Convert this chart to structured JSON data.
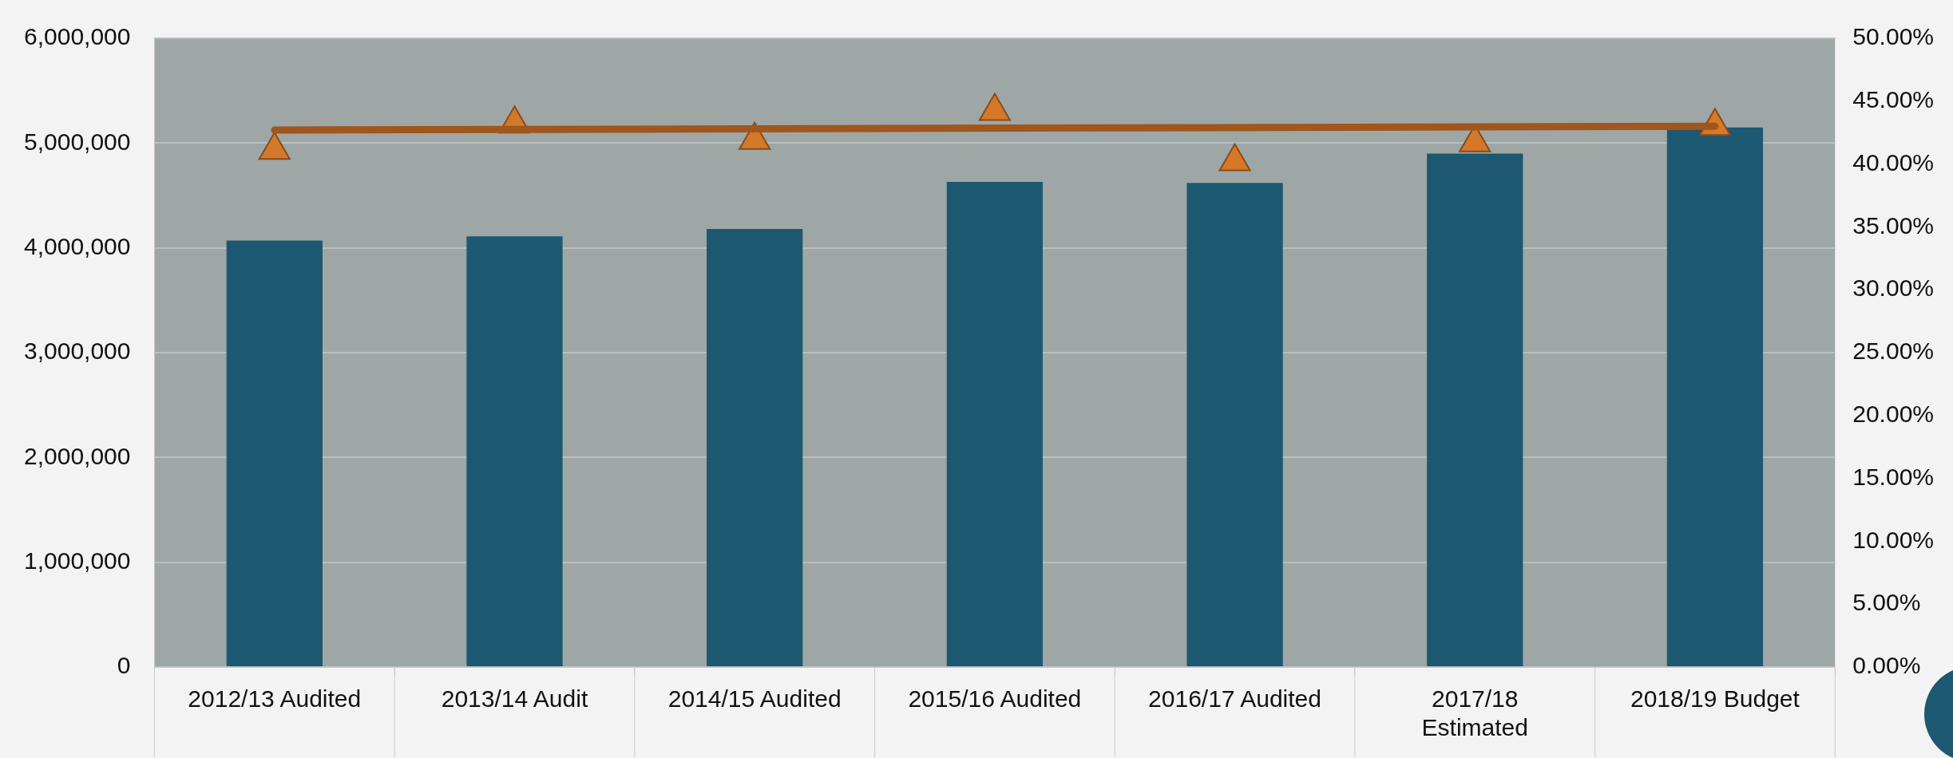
{
  "chart_data": {
    "type": "bar",
    "categories": [
      "2012/13 Audited",
      "2013/14 Audit",
      "2014/15 Audited",
      "2015/16 Audited",
      "2016/17 Audited",
      "2017/18 Estimated",
      "2018/19 Budget"
    ],
    "series": [
      {
        "color": "#1d5872",
        "values": [
          4070000,
          4110000,
          4180000,
          4630000,
          4620000,
          4900000,
          5150000
        ]
      },
      {
        "type": "scatter",
        "axis": "y2",
        "color": "#d4792a",
        "marker": "triangle",
        "values": [
          41.1,
          43.2,
          41.9,
          44.2,
          40.2,
          41.7,
          43.0
        ]
      },
      {
        "type": "line",
        "axis": "y2",
        "color": "#a0561c",
        "x": [
          "2012/13 Audited",
          "2018/19 Budget"
        ],
        "values": [
          42.7,
          43.0
        ]
      }
    ],
    "ylim": [
      0,
      6000000
    ],
    "yticks": [
      {
        "value": 0,
        "label": "0"
      },
      {
        "value": 1000000,
        "label": "1,000,000"
      },
      {
        "value": 2000000,
        "label": "2,000,000"
      },
      {
        "value": 3000000,
        "label": "3,000,000"
      },
      {
        "value": 4000000,
        "label": "4,000,000"
      },
      {
        "value": 5000000,
        "label": "5,000,000"
      },
      {
        "value": 6000000,
        "label": "6,000,000"
      }
    ],
    "y2lim": [
      0,
      50
    ],
    "y2ticks": [
      {
        "value": 0,
        "label": "0.00%"
      },
      {
        "value": 5,
        "label": "5.00%"
      },
      {
        "value": 10,
        "label": "10.00%"
      },
      {
        "value": 15,
        "label": "15.00%"
      },
      {
        "value": 20,
        "label": "20.00%"
      },
      {
        "value": 25,
        "label": "25.00%"
      },
      {
        "value": 30,
        "label": "30.00%"
      },
      {
        "value": 35,
        "label": "35.00%"
      },
      {
        "value": 40,
        "label": "40.00%"
      },
      {
        "value": 45,
        "label": "45.00%"
      },
      {
        "value": 50,
        "label": "50.00%"
      }
    ],
    "grid": "y",
    "legend": false
  }
}
